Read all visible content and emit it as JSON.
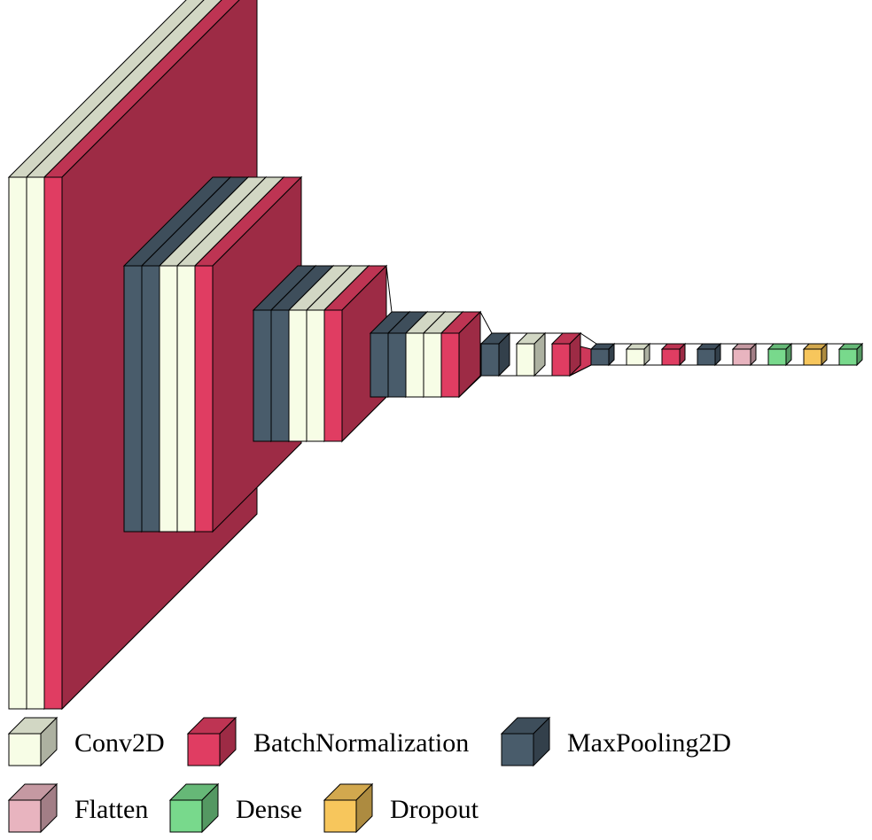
{
  "colors": {
    "Conv2D": "#f7fde6",
    "BatchNormalization": "#e03d62",
    "MaxPooling2D": "#495c6b",
    "Flatten": "#e8b4bf",
    "Dense": "#78d98c",
    "Dropout": "#f7c65c"
  },
  "layers": [
    {
      "type": "Conv2D"
    },
    {
      "type": "Conv2D"
    },
    {
      "type": "BatchNormalization"
    },
    {
      "type": "MaxPooling2D"
    },
    {
      "type": "MaxPooling2D"
    },
    {
      "type": "Conv2D"
    },
    {
      "type": "Conv2D"
    },
    {
      "type": "BatchNormalization"
    },
    {
      "type": "MaxPooling2D"
    },
    {
      "type": "MaxPooling2D"
    },
    {
      "type": "Conv2D"
    },
    {
      "type": "Conv2D"
    },
    {
      "type": "BatchNormalization"
    },
    {
      "type": "MaxPooling2D"
    },
    {
      "type": "MaxPooling2D"
    },
    {
      "type": "Conv2D"
    },
    {
      "type": "Conv2D"
    },
    {
      "type": "BatchNormalization"
    },
    {
      "type": "MaxPooling2D"
    },
    {
      "type": "Conv2D"
    },
    {
      "type": "BatchNormalization"
    },
    {
      "type": "MaxPooling2D"
    },
    {
      "type": "Conv2D"
    },
    {
      "type": "BatchNormalization"
    },
    {
      "type": "MaxPooling2D"
    },
    {
      "type": "Flatten"
    },
    {
      "type": "Dense"
    },
    {
      "type": "Dropout"
    },
    {
      "type": "Dense"
    }
  ],
  "legend": [
    {
      "type": "Conv2D",
      "label": "Conv2D"
    },
    {
      "type": "BatchNormalization",
      "label": "BatchNormalization"
    },
    {
      "type": "MaxPooling2D",
      "label": "MaxPooling2D"
    },
    {
      "type": "Flatten",
      "label": "Flatten"
    },
    {
      "type": "Dense",
      "label": "Dense"
    },
    {
      "type": "Dropout",
      "label": "Dropout"
    }
  ]
}
